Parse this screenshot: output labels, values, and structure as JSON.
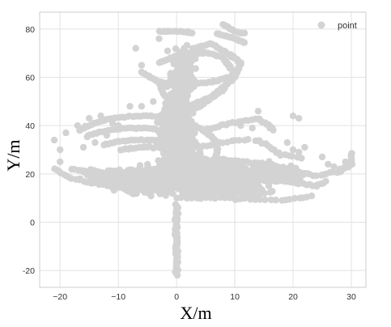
{
  "chart_data": {
    "type": "scatter",
    "title": "",
    "xlabel": "X/m",
    "ylabel": "Y/m",
    "xlim": [
      -23.5,
      32.5
    ],
    "ylim": [
      -27,
      87
    ],
    "x_ticks": [
      -20,
      -10,
      0,
      10,
      20,
      30
    ],
    "y_ticks": [
      -20,
      0,
      20,
      40,
      60,
      80
    ],
    "x_tick_labels": [
      "−20",
      "−10",
      "0",
      "10",
      "20",
      "30"
    ],
    "y_tick_labels": [
      "-20",
      "0",
      "20",
      "40",
      "60",
      "80"
    ],
    "grid": true,
    "legend_position": "top-right",
    "colors": {
      "point": "#d3d3d3",
      "grid": "#e2e2e2",
      "spine": "#cccccc"
    },
    "series": [
      {
        "name": "point",
        "shapes": [
          {
            "kind": "line",
            "points": [
              [
                0,
                -22
              ],
              [
                0,
                -10
              ],
              [
                0,
                0
              ],
              [
                0,
                8
              ]
            ],
            "step": 0.5,
            "jitter": [
              0.4,
              0.3
            ]
          },
          {
            "kind": "blob",
            "center": [
              3,
              20
            ],
            "radius": [
              14,
              7
            ],
            "count": 600
          },
          {
            "kind": "blob",
            "center": [
              0,
              38
            ],
            "radius": [
              4,
              20
            ],
            "count": 420
          },
          {
            "kind": "blob",
            "center": [
              -4,
              16
            ],
            "radius": [
              9,
              6
            ],
            "count": 240
          },
          {
            "kind": "blob",
            "center": [
              8,
              14
            ],
            "radius": [
              11,
              5
            ],
            "count": 240
          },
          {
            "kind": "blob",
            "center": [
              17,
              20
            ],
            "radius": [
              6,
              4
            ],
            "count": 140
          },
          {
            "kind": "blob",
            "center": [
              1,
              62
            ],
            "radius": [
              3,
              14
            ],
            "count": 130
          },
          {
            "kind": "blob",
            "center": [
              -12,
              18
            ],
            "radius": [
              6,
              3
            ],
            "count": 90
          },
          {
            "kind": "loop",
            "center": [
              -6,
              30
            ],
            "radius": [
              13,
              14
            ],
            "angles": [
              35,
              320
            ],
            "step": 2
          },
          {
            "kind": "loop",
            "center": [
              -7,
              29
            ],
            "radius": [
              11,
              10
            ],
            "angles": [
              40,
              315
            ],
            "step": 2.5
          },
          {
            "kind": "loop",
            "center": [
              -6,
              27
            ],
            "radius": [
              9,
              7
            ],
            "angles": [
              45,
              310
            ],
            "step": 3
          },
          {
            "kind": "loop",
            "center": [
              -5,
              26
            ],
            "radius": [
              7,
              5
            ],
            "angles": [
              50,
              300
            ],
            "step": 4
          },
          {
            "kind": "line",
            "points": [
              [
                -18,
                22
              ],
              [
                -12,
                20
              ],
              [
                -6,
                21
              ],
              [
                0,
                22
              ]
            ],
            "step": 0.6,
            "jitter": [
              0.3,
              0.6
            ]
          },
          {
            "kind": "line",
            "points": [
              [
                0,
                24
              ],
              [
                8,
                26
              ],
              [
                16,
                24
              ],
              [
                24,
                19
              ],
              [
                28,
                21
              ],
              [
                30,
                24
              ],
              [
                30,
                29
              ]
            ],
            "step": 0.7,
            "jitter": [
              0.3,
              0.6
            ]
          },
          {
            "kind": "line",
            "points": [
              [
                2,
                18
              ],
              [
                10,
                18
              ],
              [
                18,
                17
              ],
              [
                24,
                15
              ],
              [
                26,
                17
              ]
            ],
            "step": 0.7,
            "jitter": [
              0.3,
              0.5
            ]
          },
          {
            "kind": "line",
            "points": [
              [
                0,
                30
              ],
              [
                6,
                32
              ],
              [
                10,
                34
              ],
              [
                14,
                34
              ],
              [
                18,
                28
              ],
              [
                22,
                26
              ]
            ],
            "step": 0.8,
            "jitter": [
              0.4,
              0.6
            ]
          },
          {
            "kind": "line",
            "points": [
              [
                0,
                44
              ],
              [
                4,
                48
              ],
              [
                8,
                55
              ],
              [
                10,
                62
              ],
              [
                8,
                68
              ],
              [
                3,
                72
              ],
              [
                6,
                74
              ],
              [
                10,
                68
              ]
            ],
            "step": 0.5,
            "jitter": [
              0.3,
              0.4
            ]
          },
          {
            "kind": "line",
            "points": [
              [
                -3,
                58
              ],
              [
                1,
                57
              ],
              [
                6,
                58
              ],
              [
                9,
                60
              ]
            ],
            "step": 0.5,
            "jitter": [
              0.2,
              0.4
            ]
          },
          {
            "kind": "line",
            "points": [
              [
                2,
                48
              ],
              [
                6,
                52
              ],
              [
                10,
                60
              ],
              [
                11,
                66
              ],
              [
                9,
                70
              ]
            ],
            "step": 0.5,
            "jitter": [
              0.2,
              0.4
            ]
          },
          {
            "kind": "line",
            "points": [
              [
                -3,
                79
              ],
              [
                1,
                79
              ],
              [
                3,
                78
              ]
            ],
            "step": 0.4,
            "jitter": [
              0.2,
              0.3
            ]
          },
          {
            "kind": "line",
            "points": [
              [
                8,
                82
              ],
              [
                10,
                79
              ],
              [
                12,
                78
              ]
            ],
            "step": 0.4,
            "jitter": [
              0.2,
              0.3
            ]
          },
          {
            "kind": "line",
            "points": [
              [
                7,
                78
              ],
              [
                10,
                76
              ],
              [
                12,
                74
              ]
            ],
            "step": 0.4,
            "jitter": [
              0.2,
              0.3
            ]
          },
          {
            "kind": "line",
            "points": [
              [
                -3,
                66
              ],
              [
                0,
                69
              ],
              [
                3,
                70
              ],
              [
                5,
                70
              ]
            ],
            "step": 0.4,
            "jitter": [
              0.2,
              0.3
            ]
          },
          {
            "kind": "line",
            "points": [
              [
                -6,
                62
              ],
              [
                -3,
                58
              ],
              [
                -2,
                52
              ]
            ],
            "step": 0.4,
            "jitter": [
              0.2,
              0.3
            ]
          },
          {
            "kind": "line",
            "points": [
              [
                -21,
                22
              ],
              [
                -18,
                18
              ],
              [
                -12,
                15
              ],
              [
                -6,
                13
              ]
            ],
            "step": 0.8,
            "jitter": [
              0.3,
              0.4
            ]
          },
          {
            "kind": "line",
            "points": [
              [
                0,
                10
              ],
              [
                10,
                10
              ],
              [
                18,
                9
              ],
              [
                24,
                11
              ]
            ],
            "step": 0.9,
            "jitter": [
              0.3,
              0.5
            ]
          },
          {
            "kind": "line",
            "points": [
              [
                5,
                38
              ],
              [
                9,
                41
              ],
              [
                14,
                43
              ],
              [
                17,
                38
              ]
            ],
            "step": 0.6,
            "jitter": [
              0.3,
              0.5
            ]
          }
        ],
        "extra_points": [
          [
            -7,
            72
          ],
          [
            -6,
            65
          ],
          [
            -1,
            53
          ],
          [
            3,
            70
          ],
          [
            14,
            46
          ],
          [
            20,
            44
          ],
          [
            21,
            43
          ],
          [
            26,
            24
          ],
          [
            11,
            40
          ],
          [
            -3,
            76
          ],
          [
            1,
            79
          ],
          [
            -2,
            79
          ],
          [
            2,
            79
          ],
          [
            13,
            39
          ],
          [
            16,
            39
          ],
          [
            19,
            33
          ],
          [
            20,
            30
          ],
          [
            21,
            29
          ],
          [
            22,
            31
          ],
          [
            25,
            27
          ],
          [
            27,
            23
          ],
          [
            28,
            22
          ],
          [
            29,
            25
          ],
          [
            30,
            27
          ],
          [
            -20,
            25
          ],
          [
            -16,
            31
          ],
          [
            -14,
            33
          ],
          [
            -10,
            40
          ],
          [
            -11,
            41
          ],
          [
            -12,
            36
          ],
          [
            -20,
            30
          ],
          [
            -21,
            34
          ],
          [
            -19,
            37
          ],
          [
            -17,
            40
          ],
          [
            -15,
            43
          ],
          [
            -13,
            44
          ],
          [
            -8,
            48
          ],
          [
            -6,
            48
          ],
          [
            -4,
            50
          ],
          [
            -2,
            45
          ]
        ]
      }
    ]
  }
}
